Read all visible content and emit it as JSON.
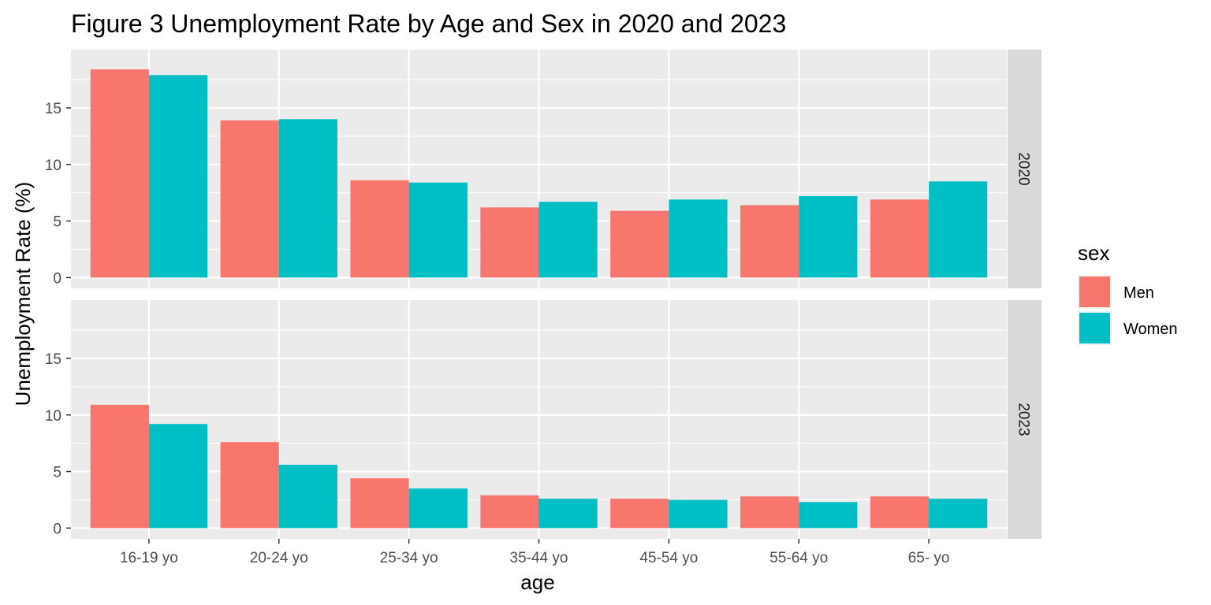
{
  "chart_data": {
    "type": "bar",
    "title": "Figure 3 Unemployment Rate by Age and Sex in 2020 and 2023",
    "xlabel": "age",
    "ylabel": "Unemployment Rate (%)",
    "ylim": [
      0,
      19.2
    ],
    "yticks": [
      "0",
      "5",
      "10",
      "15"
    ],
    "ytick_values": [
      0,
      5,
      10,
      15
    ],
    "grid": true,
    "categories": [
      "16-19 yo",
      "20-24 yo",
      "25-34 yo",
      "35-44 yo",
      "45-54 yo",
      "55-64 yo",
      "65- yo"
    ],
    "legend": {
      "title": "sex",
      "position": "right",
      "entries": [
        "Men",
        "Women"
      ]
    },
    "series_colors": {
      "Men": "#F8766D",
      "Women": "#00BFC4"
    },
    "panels": [
      {
        "facet": "2020",
        "series": [
          {
            "name": "Men",
            "values": [
              18.4,
              13.9,
              8.6,
              6.2,
              5.9,
              6.4,
              6.9
            ]
          },
          {
            "name": "Women",
            "values": [
              17.9,
              14.0,
              8.4,
              6.7,
              6.9,
              7.2,
              8.5
            ]
          }
        ]
      },
      {
        "facet": "2023",
        "series": [
          {
            "name": "Men",
            "values": [
              10.9,
              7.6,
              4.4,
              2.9,
              2.6,
              2.8,
              2.8
            ]
          },
          {
            "name": "Women",
            "values": [
              9.2,
              5.6,
              3.5,
              2.6,
              2.5,
              2.3,
              2.6
            ]
          }
        ]
      }
    ]
  }
}
